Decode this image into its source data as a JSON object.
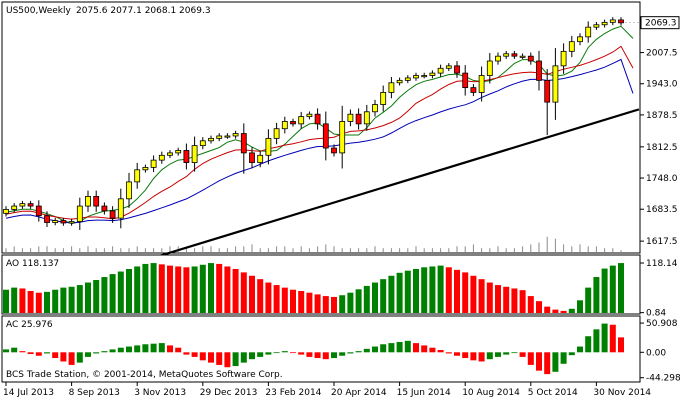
{
  "chart_data": [
    {
      "type": "candlestick",
      "title": "US500,Weekly",
      "ohlc_summary": "2075.6 2077.1 2068.1 2069.3",
      "last_price": 2069.3,
      "ylim": [
        1595,
        2110
      ],
      "y_ticks": [
        1617.5,
        1683.5,
        1748.0,
        1812.5,
        1878.5,
        1943.0,
        2007.5
      ],
      "y_tick_labels": [
        "1617.5",
        "1683.5",
        "1748.0",
        "1812.5",
        "1878.5",
        "1943.0",
        "2007.5"
      ],
      "last_price_label": "2069.3",
      "x_tick_labels": [
        "14 Jul 2013",
        "8 Sep 2013",
        "3 Nov 2013",
        "29 Dec 2013",
        "23 Feb 2014",
        "20 Apr 2014",
        "15 Jun 2014",
        "10 Aug 2014",
        "5 Oct 2014",
        "30 Nov 2014"
      ],
      "x_tick_index": [
        0,
        8,
        16,
        24,
        32,
        40,
        48,
        56,
        64,
        72
      ],
      "closes": [
        1683,
        1690,
        1695,
        1690,
        1670,
        1656,
        1660,
        1655,
        1658,
        1690,
        1710,
        1690,
        1680,
        1665,
        1705,
        1740,
        1765,
        1770,
        1785,
        1795,
        1800,
        1805,
        1780,
        1815,
        1825,
        1830,
        1835,
        1835,
        1840,
        1800,
        1780,
        1795,
        1830,
        1850,
        1865,
        1860,
        1875,
        1880,
        1860,
        1810,
        1800,
        1865,
        1880,
        1860,
        1885,
        1900,
        1925,
        1945,
        1950,
        1955,
        1960,
        1960,
        1965,
        1975,
        1980,
        1965,
        1935,
        1925,
        1960,
        1990,
        2000,
        2005,
        2000,
        2000,
        1990,
        1950,
        1905,
        1980,
        2010,
        2030,
        2040,
        2060,
        2065,
        2070,
        2075,
        2069
      ],
      "volume": [
        2,
        3,
        2,
        2,
        3,
        3,
        2,
        2,
        3,
        2,
        3,
        2,
        2,
        3,
        2,
        2,
        3,
        2,
        2,
        2,
        3,
        3,
        2,
        2,
        3,
        3,
        2,
        2,
        3,
        3,
        4,
        2,
        2,
        3,
        3,
        2,
        3,
        2,
        3,
        4,
        3,
        2,
        2,
        2,
        2,
        3,
        2,
        2,
        2,
        2,
        3,
        2,
        2,
        2,
        2,
        3,
        3,
        4,
        2,
        2,
        3,
        2,
        2,
        3,
        4,
        5,
        8,
        7,
        4,
        3,
        4,
        3,
        3,
        2,
        2,
        1
      ],
      "moving_averages": [
        {
          "color": "#0a7a0a"
        },
        {
          "color": "#c80000"
        },
        {
          "color": "#0000b4"
        }
      ],
      "trendline": {
        "start": [
          0,
          1490
        ],
        "end": [
          75,
          1890
        ],
        "color": "#000000"
      }
    },
    {
      "type": "bar",
      "title": "AO 118.137",
      "ylim": [
        0,
        130
      ],
      "y_ticks": [
        118.14,
        0.84
      ],
      "y_tick_labels": [
        "118.14",
        "0.84"
      ],
      "values": [
        55,
        60,
        58,
        52,
        48,
        50,
        55,
        60,
        62,
        66,
        72,
        78,
        85,
        92,
        98,
        104,
        110,
        116,
        118,
        115,
        112,
        110,
        108,
        110,
        114,
        118,
        116,
        110,
        104,
        96,
        88,
        80,
        72,
        66,
        60,
        55,
        52,
        48,
        44,
        40,
        38,
        42,
        48,
        56,
        64,
        72,
        80,
        88,
        95,
        100,
        104,
        108,
        110,
        112,
        108,
        102,
        96,
        88,
        80,
        72,
        66,
        62,
        58,
        54,
        40,
        28,
        15,
        8,
        5,
        10,
        30,
        60,
        85,
        105,
        112,
        118
      ],
      "colors": [
        "g",
        "g",
        "r",
        "r",
        "r",
        "g",
        "g",
        "g",
        "g",
        "g",
        "g",
        "g",
        "g",
        "g",
        "g",
        "g",
        "g",
        "g",
        "g",
        "r",
        "r",
        "r",
        "r",
        "g",
        "g",
        "g",
        "r",
        "r",
        "r",
        "r",
        "r",
        "r",
        "r",
        "r",
        "r",
        "r",
        "r",
        "r",
        "r",
        "r",
        "r",
        "g",
        "g",
        "g",
        "g",
        "g",
        "g",
        "g",
        "g",
        "g",
        "g",
        "g",
        "g",
        "g",
        "r",
        "r",
        "r",
        "r",
        "r",
        "r",
        "r",
        "r",
        "r",
        "r",
        "r",
        "r",
        "r",
        "r",
        "r",
        "g",
        "g",
        "g",
        "g",
        "g",
        "g",
        "g"
      ],
      "color_map": {
        "g": "#008000",
        "r": "#ff0000"
      }
    },
    {
      "type": "bar",
      "title": "AC 25.976",
      "ylim": [
        -50,
        58
      ],
      "y_ticks": [
        50.908,
        0.0,
        -44.298
      ],
      "y_tick_labels": [
        "50.908",
        "0.00",
        "-44.298"
      ],
      "values": [
        5,
        8,
        2,
        -3,
        -6,
        -2,
        -10,
        -16,
        -22,
        -18,
        -8,
        -2,
        2,
        5,
        8,
        10,
        12,
        14,
        15,
        16,
        12,
        8,
        -4,
        -8,
        -14,
        -18,
        -22,
        -26,
        -24,
        -18,
        -12,
        -8,
        -4,
        0,
        2,
        0,
        -4,
        -8,
        -10,
        -12,
        -10,
        -6,
        -2,
        2,
        6,
        10,
        14,
        16,
        18,
        20,
        16,
        12,
        8,
        4,
        -2,
        -6,
        -10,
        -14,
        -16,
        -12,
        -8,
        -4,
        0,
        -8,
        -22,
        -32,
        -38,
        -34,
        -20,
        -5,
        10,
        28,
        40,
        50,
        48,
        26
      ],
      "colors": [
        "g",
        "g",
        "r",
        "r",
        "r",
        "g",
        "r",
        "r",
        "r",
        "g",
        "g",
        "g",
        "g",
        "g",
        "g",
        "g",
        "g",
        "g",
        "g",
        "g",
        "r",
        "r",
        "r",
        "r",
        "r",
        "r",
        "r",
        "r",
        "g",
        "g",
        "g",
        "g",
        "g",
        "g",
        "g",
        "r",
        "r",
        "r",
        "r",
        "r",
        "g",
        "g",
        "g",
        "g",
        "g",
        "g",
        "g",
        "g",
        "g",
        "g",
        "r",
        "r",
        "r",
        "r",
        "r",
        "r",
        "r",
        "r",
        "r",
        "g",
        "g",
        "g",
        "g",
        "r",
        "r",
        "r",
        "r",
        "g",
        "g",
        "g",
        "g",
        "g",
        "g",
        "g",
        "r",
        "r"
      ],
      "color_map": {
        "g": "#008000",
        "r": "#ff0000"
      }
    }
  ],
  "footer_text": "BCS Trade Station, © 2001-2014, MetaQuotes Software Corp."
}
